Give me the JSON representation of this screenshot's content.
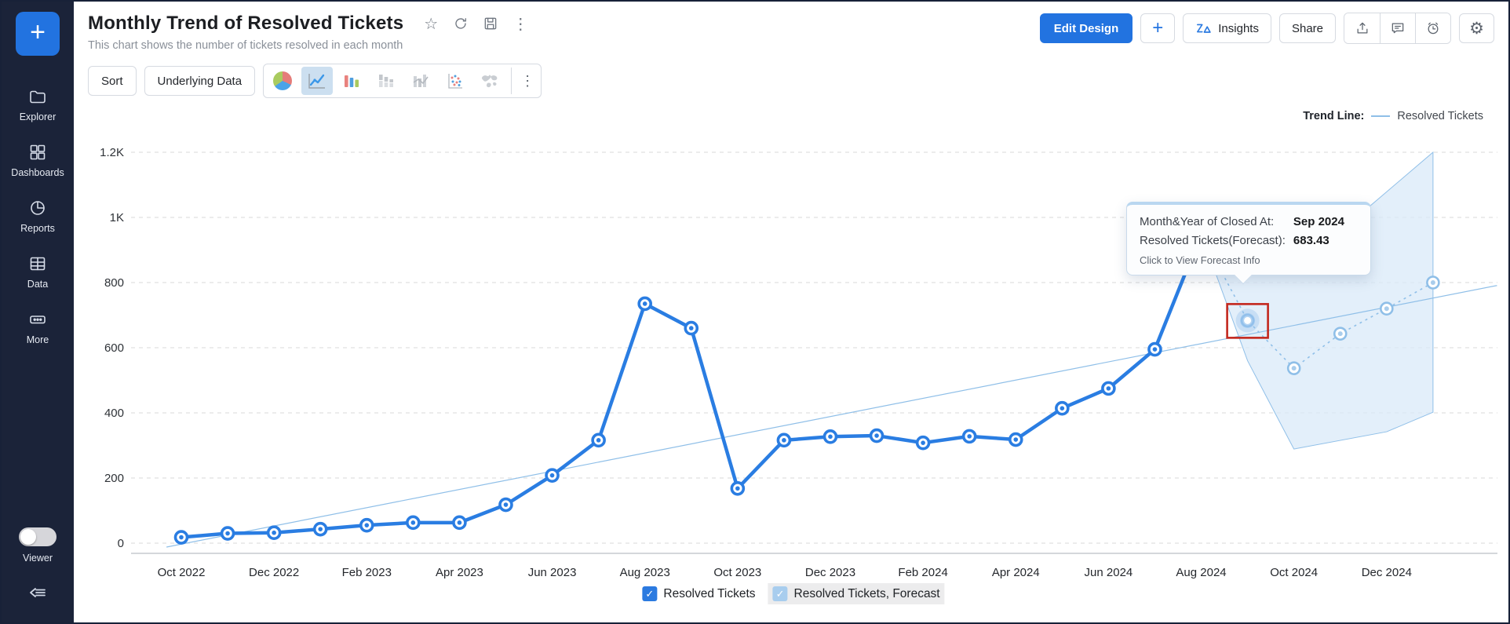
{
  "sidebar": {
    "plus": "+",
    "items": [
      {
        "id": "explorer",
        "label": "Explorer"
      },
      {
        "id": "dashboards",
        "label": "Dashboards"
      },
      {
        "id": "reports",
        "label": "Reports"
      },
      {
        "id": "data",
        "label": "Data"
      },
      {
        "id": "more",
        "label": "More"
      }
    ],
    "viewer_label": "Viewer"
  },
  "header": {
    "title": "Monthly Trend of Resolved Tickets",
    "subtitle": "This chart shows the number of tickets resolved in each month",
    "edit_design": "Edit Design",
    "plus": "+",
    "insights": "Insights",
    "share": "Share"
  },
  "toolbar": {
    "sort": "Sort",
    "underlying_data": "Underlying Data"
  },
  "trend_legend": {
    "label": "Trend Line:",
    "series": "Resolved Tickets"
  },
  "tooltip": {
    "row1_label": "Month&Year of Closed At:",
    "row1_value": "Sep 2024",
    "row2_label": "Resolved Tickets(Forecast):",
    "row2_value": "683.43",
    "footer": "Click to View Forecast Info"
  },
  "legend": {
    "series1": "Resolved Tickets",
    "series2": "Resolved Tickets, Forecast"
  },
  "colors": {
    "accent": "#2273e0",
    "line": "#2a7de2",
    "forecast": "#8fbfe8",
    "forecast_marker_fill": "#a9cdec",
    "band_fill": "#daeaf8",
    "trend": "#8fbfe8",
    "grid": "#d8d8d8",
    "axis": "#c6cacf",
    "selection_box": "#c3271d",
    "sidebar_bg": "#1b2339"
  },
  "chart_data": {
    "type": "line",
    "title": "Monthly Trend of Resolved Tickets",
    "ylabel": "",
    "xlabel": "",
    "ylim": [
      0,
      1200
    ],
    "grid": "dashed-horizontal",
    "y_ticks": [
      {
        "value": 0,
        "label": "0"
      },
      {
        "value": 200,
        "label": "200"
      },
      {
        "value": 400,
        "label": "400"
      },
      {
        "value": 600,
        "label": "600"
      },
      {
        "value": 800,
        "label": "800"
      },
      {
        "value": 1000,
        "label": "1K"
      },
      {
        "value": 1200,
        "label": "1.2K"
      }
    ],
    "x_tick_labels": [
      "Oct 2022",
      "Dec 2022",
      "Feb 2023",
      "Apr 2023",
      "Jun 2023",
      "Aug 2023",
      "Oct 2023",
      "Dec 2023",
      "Feb 2024",
      "Apr 2024",
      "Jun 2024",
      "Aug 2024",
      "Oct 2024",
      "Dec 2024"
    ],
    "series": [
      {
        "name": "Resolved Tickets",
        "style": "solid",
        "months": [
          "Oct 2022",
          "Nov 2022",
          "Dec 2022",
          "Jan 2023",
          "Feb 2023",
          "Mar 2023",
          "Apr 2023",
          "May 2023",
          "Jun 2023",
          "Jul 2023",
          "Aug 2023",
          "Sep 2023",
          "Oct 2023",
          "Nov 2023",
          "Dec 2023",
          "Jan 2024",
          "Feb 2024",
          "Mar 2024",
          "Apr 2024",
          "May 2024",
          "Jun 2024",
          "Jul 2024",
          "Aug 2024"
        ],
        "values": [
          18,
          30,
          32,
          43,
          55,
          63,
          63,
          118,
          208,
          316,
          735,
          660,
          168,
          316,
          327,
          330,
          308,
          328,
          318,
          414,
          475,
          595,
          950
        ]
      },
      {
        "name": "Resolved Tickets, Forecast",
        "style": "dotted",
        "months": [
          "Sep 2024",
          "Oct 2024",
          "Nov 2024",
          "Dec 2024",
          "Jan 2025"
        ],
        "values": [
          683.43,
          537,
          643,
          720,
          800
        ]
      }
    ],
    "forecast_band": {
      "upper": [
        [
          22,
          950
        ],
        [
          25.6,
          1030
        ],
        [
          27,
          1200
        ]
      ],
      "lower": [
        [
          22,
          950
        ],
        [
          23,
          560
        ],
        [
          24,
          289
        ],
        [
          26,
          342
        ],
        [
          27,
          402
        ]
      ]
    },
    "trend_line": {
      "i1": -0.32,
      "v1": -12,
      "i2": 28.38,
      "v2": 791
    },
    "selected_point": {
      "month": "Sep 2024",
      "value": 683.43,
      "series": "Resolved Tickets, Forecast"
    },
    "legend_position": "bottom"
  }
}
